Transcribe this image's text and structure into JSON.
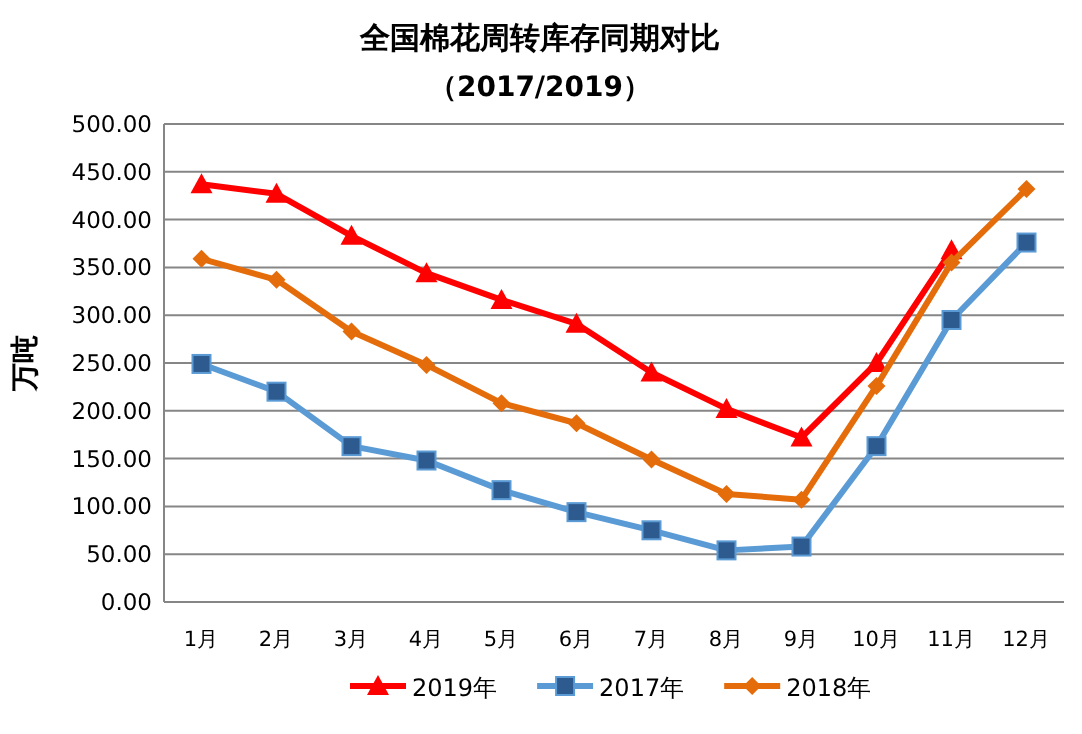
{
  "chart_data": {
    "type": "line",
    "title": "全国棉花周转库存同期对比",
    "subtitle": "（2017/2019）",
    "ylabel": "万吨",
    "categories": [
      "1月",
      "2月",
      "3月",
      "4月",
      "5月",
      "6月",
      "7月",
      "8月",
      "9月",
      "10月",
      "11月",
      "12月"
    ],
    "ylim": [
      0,
      500
    ],
    "yticks": [
      {
        "value": 0,
        "label": "0.00"
      },
      {
        "value": 50,
        "label": "50.00"
      },
      {
        "value": 100,
        "label": "100.00"
      },
      {
        "value": 150,
        "label": "150.00"
      },
      {
        "value": 200,
        "label": "200.00"
      },
      {
        "value": 250,
        "label": "250.00"
      },
      {
        "value": 300,
        "label": "300.00"
      },
      {
        "value": 350,
        "label": "350.00"
      },
      {
        "value": 400,
        "label": "400.00"
      },
      {
        "value": 450,
        "label": "450.00"
      },
      {
        "value": 500,
        "label": "500.00"
      }
    ],
    "grid": "y",
    "legend": "bottom",
    "series": [
      {
        "name": "2019年",
        "color": "#ff0000",
        "marker": "triangle",
        "values": [
          437,
          427,
          383,
          344,
          316,
          291,
          240,
          202,
          172,
          250,
          368,
          null
        ]
      },
      {
        "name": "2017年",
        "color": "#5b9bd5",
        "marker": "square",
        "values": [
          249,
          220,
          163,
          148,
          117,
          94,
          75,
          54,
          58,
          163,
          295,
          376
        ]
      },
      {
        "name": "2018年",
        "color": "#e46c0a",
        "marker": "diamond",
        "values": [
          359,
          337,
          283,
          248,
          208,
          187,
          149,
          113,
          107,
          226,
          355,
          432
        ]
      }
    ]
  }
}
